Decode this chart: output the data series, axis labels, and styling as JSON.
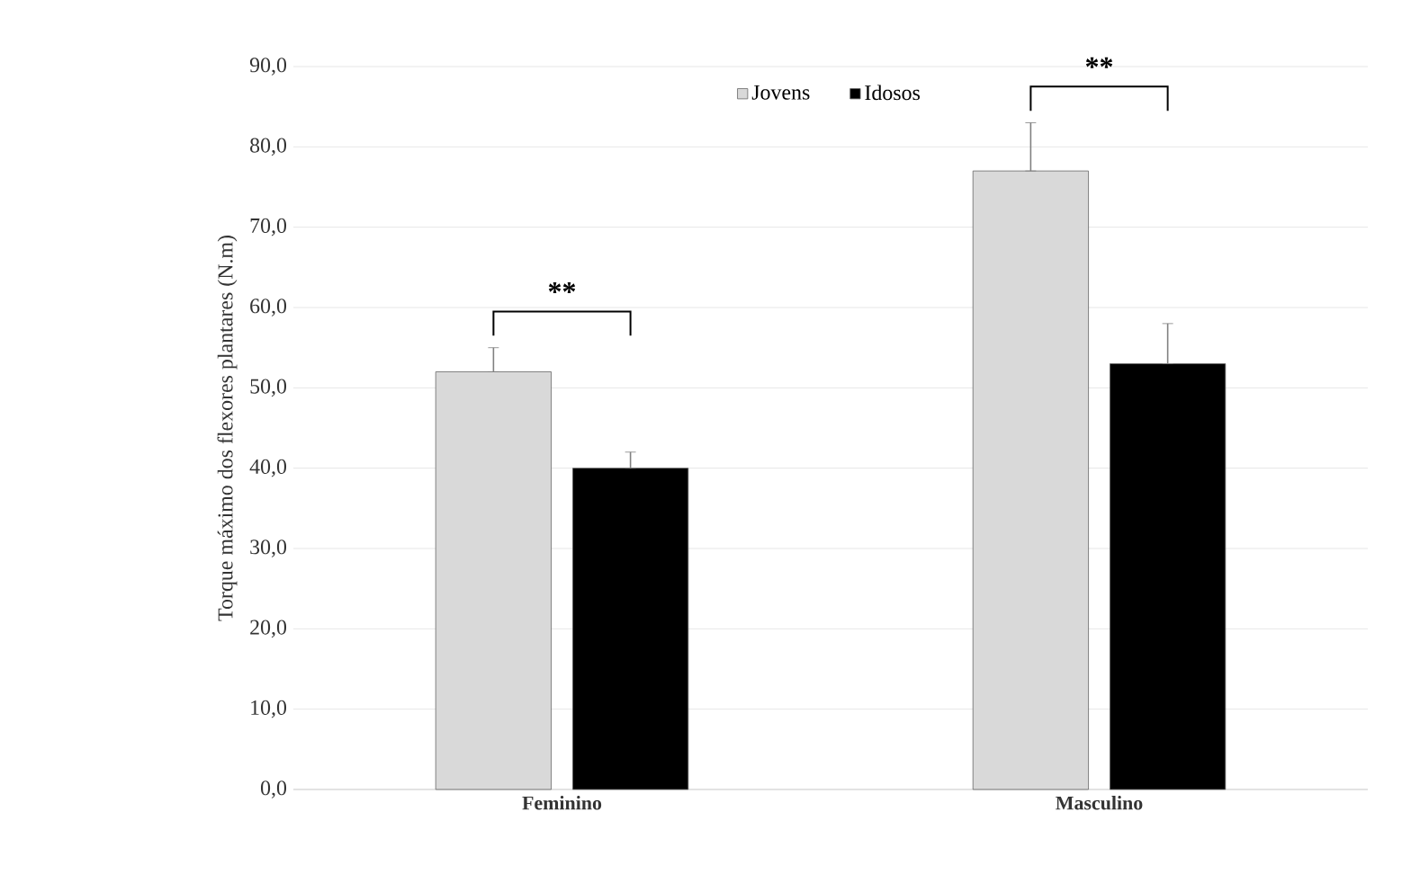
{
  "chart_data": {
    "type": "bar",
    "ylabel": "Torque máximo dos flexores plantares (N.m)",
    "categories": [
      "Feminino",
      "Masculino"
    ],
    "series": [
      {
        "name": "Jovens",
        "color": "#d9d9d9",
        "values": [
          52,
          77
        ],
        "errors": [
          [
            52,
            55
          ],
          [
            77,
            83
          ]
        ]
      },
      {
        "name": "Idosos",
        "color": "#000000",
        "values": [
          40,
          53
        ],
        "errors": [
          [
            40,
            42
          ],
          [
            53,
            58
          ]
        ]
      }
    ],
    "ylim": [
      0,
      90
    ],
    "yticks": [
      {
        "value": 0,
        "label": "0,0"
      },
      {
        "value": 10,
        "label": "10,0"
      },
      {
        "value": 20,
        "label": "20,0"
      },
      {
        "value": 30,
        "label": "30,0"
      },
      {
        "value": 40,
        "label": "40,0"
      },
      {
        "value": 50,
        "label": "50,0"
      },
      {
        "value": 60,
        "label": "60,0"
      },
      {
        "value": 70,
        "label": "70,0"
      },
      {
        "value": 80,
        "label": "80,0"
      },
      {
        "value": 90,
        "label": "90,0"
      }
    ],
    "grid": "y",
    "legend": "top",
    "annotations": [
      "**",
      "**"
    ]
  }
}
